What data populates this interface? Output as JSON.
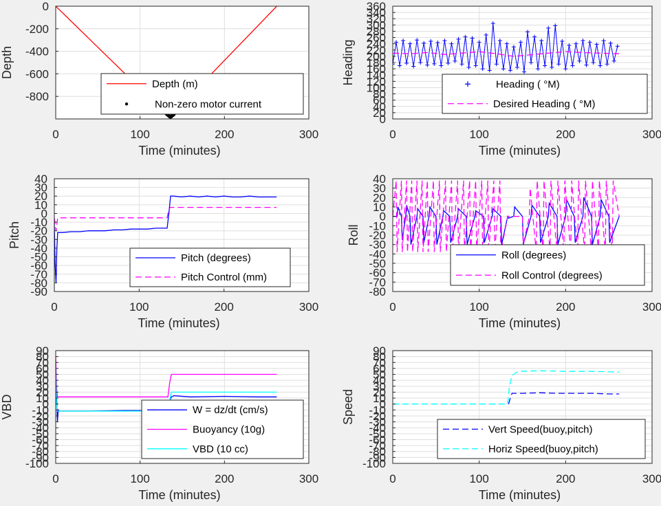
{
  "chart_data": [
    {
      "id": "depth",
      "type": "line",
      "xlabel": "Time (minutes)",
      "ylabel": "Depth",
      "xlim": [
        0,
        300
      ],
      "ylim": [
        -1000,
        0
      ],
      "xticks": [
        "0",
        "100",
        "200",
        "300"
      ],
      "yticks": [
        "0",
        "-200",
        "-400",
        "-600",
        "-800"
      ],
      "grid": true,
      "legend_position": "lower-right",
      "series": [
        {
          "name": "Depth (m)",
          "color": "#ff0000",
          "style": "solid",
          "x": [
            0,
            135,
            262
          ],
          "y": [
            0,
            -985,
            0
          ]
        },
        {
          "name": "Non-zero motor current",
          "color": "#000000",
          "style": "dots",
          "x": [
            131,
            132,
            133,
            134,
            135,
            136,
            137,
            138,
            139,
            140
          ],
          "y": [
            -952,
            -960,
            -966,
            -972,
            -978,
            -983,
            -978,
            -972,
            -966,
            -960
          ]
        }
      ]
    },
    {
      "id": "heading",
      "type": "line",
      "xlabel": "Time (minutes)",
      "ylabel": "Heading",
      "xlim": [
        0,
        300
      ],
      "ylim": [
        0,
        360
      ],
      "xticks": [
        "0",
        "100",
        "200",
        "300"
      ],
      "yticks": [
        "0",
        "20",
        "40",
        "60",
        "80",
        "100",
        "120",
        "140",
        "160",
        "180",
        "200",
        "220",
        "240",
        "260",
        "280",
        "300",
        "320",
        "340",
        "360"
      ],
      "grid": true,
      "legend_position": "lower-right",
      "series": [
        {
          "name": "Heading ( °M)",
          "color": "#0000ff",
          "style": "plus",
          "x": [
            0,
            4,
            8,
            12,
            16,
            20,
            24,
            28,
            32,
            36,
            40,
            44,
            48,
            52,
            56,
            60,
            64,
            68,
            72,
            76,
            80,
            84,
            88,
            92,
            96,
            100,
            104,
            108,
            112,
            116,
            120,
            124,
            128,
            132,
            136,
            140,
            144,
            148,
            152,
            156,
            160,
            164,
            168,
            172,
            176,
            180,
            184,
            188,
            192,
            196,
            200,
            204,
            208,
            212,
            216,
            220,
            224,
            228,
            232,
            236,
            240,
            244,
            248,
            252,
            256,
            260
          ],
          "y": [
            175,
            245,
            170,
            250,
            178,
            240,
            168,
            252,
            180,
            242,
            172,
            248,
            176,
            244,
            170,
            250,
            178,
            240,
            185,
            255,
            175,
            262,
            165,
            258,
            170,
            245,
            160,
            268,
            155,
            305,
            175,
            250,
            160,
            240,
            155,
            230,
            165,
            245,
            150,
            278,
            180,
            262,
            160,
            250,
            170,
            290,
            165,
            298,
            175,
            248,
            160,
            235,
            170,
            240,
            185,
            250,
            172,
            245,
            180,
            238,
            170,
            250,
            175,
            242,
            185,
            232
          ]
        },
        {
          "name": "Desired Heading ( °M)",
          "color": "#ff00ff",
          "style": "dashed",
          "x": [
            0,
            20,
            40,
            60,
            80,
            100,
            120,
            140,
            160,
            180,
            200,
            220,
            240,
            262
          ],
          "y": [
            210,
            208,
            212,
            206,
            210,
            215,
            208,
            200,
            205,
            210,
            215,
            212,
            210,
            208
          ]
        }
      ]
    },
    {
      "id": "pitch",
      "type": "line",
      "xlabel": "Time (minutes)",
      "ylabel": "Pitch",
      "xlim": [
        0,
        300
      ],
      "ylim": [
        -90,
        40
      ],
      "xticks": [
        "0",
        "100",
        "200",
        "300"
      ],
      "yticks": [
        "40",
        "30",
        "20",
        "10",
        "0",
        "-10",
        "-20",
        "-30",
        "-40",
        "-50",
        "-60",
        "-70",
        "-80",
        "-90"
      ],
      "grid": true,
      "legend_position": "lower-right",
      "series": [
        {
          "name": "Pitch (degrees)",
          "color": "#0000ff",
          "style": "solid",
          "x": [
            0,
            1,
            2,
            3,
            4,
            10,
            20,
            30,
            40,
            50,
            60,
            70,
            80,
            90,
            100,
            110,
            120,
            130,
            133,
            135,
            137,
            140,
            150,
            160,
            170,
            180,
            190,
            200,
            210,
            220,
            230,
            240,
            250,
            262
          ],
          "y": [
            -10,
            -60,
            -80,
            -40,
            -22,
            -22,
            -21,
            -21,
            -20,
            -20,
            -20,
            -19,
            -19,
            -18,
            -18,
            -18,
            -17,
            -17,
            -17,
            0,
            20,
            20,
            19,
            20,
            19,
            20,
            19,
            20,
            19,
            19,
            20,
            19,
            19,
            19
          ]
        },
        {
          "name": "Pitch Control (mm)",
          "color": "#ff00ff",
          "style": "dashed",
          "x": [
            0,
            2,
            4,
            10,
            60,
            133,
            135,
            137,
            262
          ],
          "y": [
            -5,
            -20,
            -5,
            -5,
            -5,
            -5,
            5,
            7,
            7
          ]
        }
      ]
    },
    {
      "id": "roll",
      "type": "line",
      "xlabel": "Time (minutes)",
      "ylabel": "Roll",
      "xlim": [
        0,
        300
      ],
      "ylim": [
        -80,
        40
      ],
      "xticks": [
        "0",
        "100",
        "200",
        "300"
      ],
      "yticks": [
        "40",
        "30",
        "20",
        "10",
        "0",
        "-10",
        "-20",
        "-30",
        "-40",
        "-50",
        "-60",
        "-70",
        "-80"
      ],
      "grid": true,
      "legend_position": "lower-right",
      "series": [
        {
          "name": "Roll (degrees)",
          "color": "#0000ff",
          "style": "solid",
          "x": [
            0,
            5,
            6,
            10,
            11,
            15,
            16,
            20,
            21,
            28,
            29,
            35,
            36,
            42,
            43,
            50,
            51,
            58,
            59,
            66,
            67,
            75,
            76,
            85,
            86,
            95,
            96,
            105,
            106,
            115,
            116,
            125,
            126,
            133,
            134,
            140,
            141,
            150,
            151,
            160,
            161,
            170,
            171,
            180,
            181,
            190,
            191,
            200,
            201,
            210,
            211,
            220,
            221,
            230,
            231,
            240,
            241,
            250,
            251,
            262
          ],
          "y": [
            0,
            0,
            10,
            0,
            -25,
            0,
            12,
            0,
            -30,
            0,
            8,
            0,
            -28,
            0,
            10,
            0,
            -30,
            0,
            6,
            0,
            -28,
            0,
            8,
            0,
            -30,
            0,
            6,
            0,
            -28,
            0,
            8,
            0,
            -30,
            0,
            -2,
            0,
            10,
            0,
            -30,
            0,
            12,
            0,
            -28,
            0,
            14,
            0,
            -30,
            0,
            18,
            0,
            -28,
            0,
            20,
            0,
            -30,
            0,
            18,
            0,
            -28,
            0
          ]
        },
        {
          "name": "Roll Control (degrees)",
          "color": "#ff00ff",
          "style": "dashed",
          "x": [
            0,
            4,
            5,
            10,
            11,
            16,
            17,
            22,
            23,
            28,
            29,
            34,
            35,
            40,
            41,
            47,
            48,
            54,
            55,
            61,
            62,
            68,
            69,
            75,
            76,
            82,
            83,
            89,
            90,
            96,
            97,
            103,
            104,
            110,
            111,
            117,
            118,
            124,
            125,
            133,
            134,
            140,
            141,
            150,
            151,
            158,
            159,
            166,
            167,
            174,
            175,
            182,
            183,
            190,
            191,
            198,
            199,
            206,
            207,
            214,
            215,
            222,
            223,
            230,
            231,
            238,
            239,
            246,
            247,
            254,
            255,
            262
          ],
          "y": [
            0,
            38,
            -38,
            38,
            -38,
            38,
            -38,
            38,
            -38,
            38,
            -38,
            38,
            -38,
            38,
            -38,
            38,
            -38,
            38,
            -38,
            38,
            -38,
            38,
            -38,
            38,
            -38,
            38,
            -38,
            38,
            -38,
            38,
            -38,
            38,
            -38,
            38,
            -38,
            38,
            -38,
            38,
            -38,
            0,
            0,
            0,
            0,
            0,
            -30,
            0,
            30,
            -38,
            38,
            -38,
            38,
            -38,
            38,
            -38,
            38,
            -38,
            38,
            -38,
            38,
            -38,
            38,
            -38,
            38,
            -38,
            38,
            -38,
            38,
            -38,
            38,
            -38,
            38,
            0
          ]
        }
      ]
    },
    {
      "id": "vbd",
      "type": "line",
      "xlabel": "Time (minutes)",
      "ylabel": "VBD",
      "xlim": [
        0,
        300
      ],
      "ylim": [
        -100,
        90
      ],
      "xticks": [
        "0",
        "100",
        "200",
        "300"
      ],
      "yticks": [
        "90",
        "80",
        "70",
        "60",
        "50",
        "40",
        "30",
        "20",
        "10",
        "0",
        "-10",
        "-20",
        "-30",
        "-40",
        "-50",
        "-60",
        "-70",
        "-80",
        "-90",
        "-100"
      ],
      "grid": true,
      "legend_position": "lower-right",
      "series": [
        {
          "name": "W = dz/dt (cm/s)",
          "color": "#0000ff",
          "style": "solid",
          "x": [
            0,
            1,
            2,
            3,
            4,
            10,
            40,
            80,
            120,
            133,
            135,
            137,
            140,
            160,
            200,
            240,
            262
          ],
          "y": [
            60,
            20,
            -30,
            -10,
            -12,
            -12,
            -12,
            -11,
            -11,
            -11,
            5,
            12,
            14,
            12,
            13,
            12,
            12
          ]
        },
        {
          "name": "Buoyancy (10g)",
          "color": "#ff00ff",
          "style": "solid",
          "x": [
            0,
            1,
            2,
            3,
            4,
            133,
            135,
            137,
            140,
            262
          ],
          "y": [
            80,
            30,
            12,
            12,
            12,
            12,
            35,
            50,
            50,
            50
          ]
        },
        {
          "name": "VBD (10 cc)",
          "color": "#00ffff",
          "style": "solid",
          "x": [
            0,
            1,
            2,
            3,
            4,
            133,
            135,
            137,
            140,
            262
          ],
          "y": [
            60,
            0,
            -12,
            -12,
            -12,
            -12,
            5,
            20,
            20,
            20
          ]
        }
      ]
    },
    {
      "id": "speed",
      "type": "line",
      "xlabel": "Time (minutes)",
      "ylabel": "Speed",
      "xlim": [
        0,
        300
      ],
      "ylim": [
        -100,
        90
      ],
      "xticks": [
        "0",
        "100",
        "200",
        "300"
      ],
      "yticks": [
        "90",
        "80",
        "70",
        "60",
        "50",
        "40",
        "30",
        "20",
        "10",
        "0",
        "-10",
        "-20",
        "-30",
        "-40",
        "-50",
        "-60",
        "-70",
        "-80",
        "-90",
        "-100"
      ],
      "grid": true,
      "legend_position": "lower-right",
      "series": [
        {
          "name": "Vert Speed(buoy,pitch)",
          "color": "#0000ff",
          "style": "dashed",
          "x": [
            134,
            136,
            138,
            150,
            170,
            190,
            210,
            230,
            250,
            262
          ],
          "y": [
            0,
            10,
            18,
            18,
            19,
            18,
            18,
            18,
            17,
            17
          ]
        },
        {
          "name": "Horiz Speed(buoy,pitch)",
          "color": "#00ffff",
          "style": "dashed",
          "x": [
            0,
            40,
            80,
            120,
            133,
            135,
            138,
            145,
            170,
            200,
            230,
            262
          ],
          "y": [
            0,
            0,
            0,
            0,
            0,
            30,
            48,
            55,
            56,
            55,
            55,
            54
          ]
        }
      ]
    }
  ]
}
